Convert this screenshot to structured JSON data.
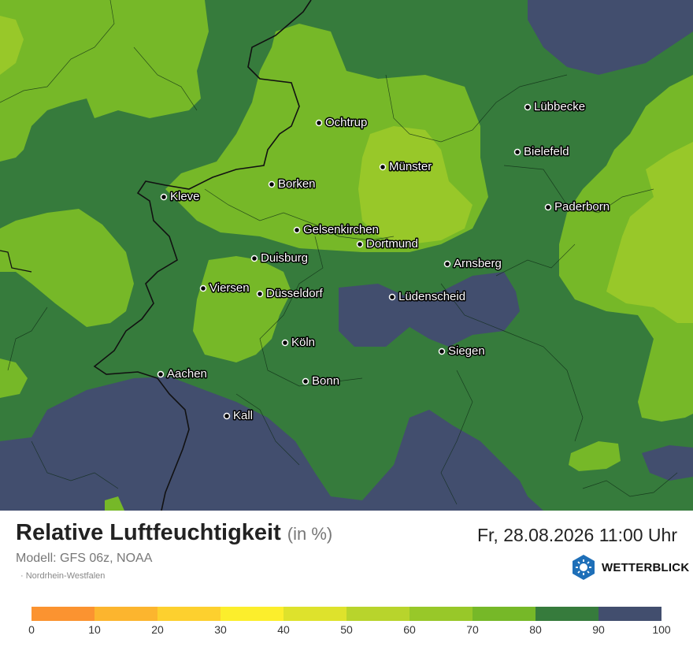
{
  "title": "Relative Luftfeuchtigkeit",
  "unit": "(in %)",
  "datetime": "Fr, 28.08.2026 11:00 Uhr",
  "model": "Modell: GFS 06z, NOAA",
  "region": "Nordrhein-Westfalen",
  "brand": "WETTERBLICK",
  "legend": {
    "ticks": [
      "0",
      "10",
      "20",
      "30",
      "40",
      "50",
      "60",
      "70",
      "80",
      "90",
      "100"
    ],
    "colors": [
      "#fb9330",
      "#fcb52e",
      "#fdd02e",
      "#fcee2c",
      "#dee22c",
      "#b8d42c",
      "#98c829",
      "#76b828",
      "#367b3c",
      "#424e6e"
    ]
  },
  "cities": [
    {
      "name": "Lübbecke"
    },
    {
      "name": "Ochtrup"
    },
    {
      "name": "Bielefeld"
    },
    {
      "name": "Münster"
    },
    {
      "name": "Borken"
    },
    {
      "name": "Kleve"
    },
    {
      "name": "Paderborn"
    },
    {
      "name": "Gelsenkirchen"
    },
    {
      "name": "Dortmund"
    },
    {
      "name": "Duisburg"
    },
    {
      "name": "Arnsberg"
    },
    {
      "name": "Viersen"
    },
    {
      "name": "Düsseldorf"
    },
    {
      "name": "Lüdenscheid"
    },
    {
      "name": "Köln"
    },
    {
      "name": "Siegen"
    },
    {
      "name": "Aachen"
    },
    {
      "name": "Bonn"
    },
    {
      "name": "Kall"
    }
  ]
}
